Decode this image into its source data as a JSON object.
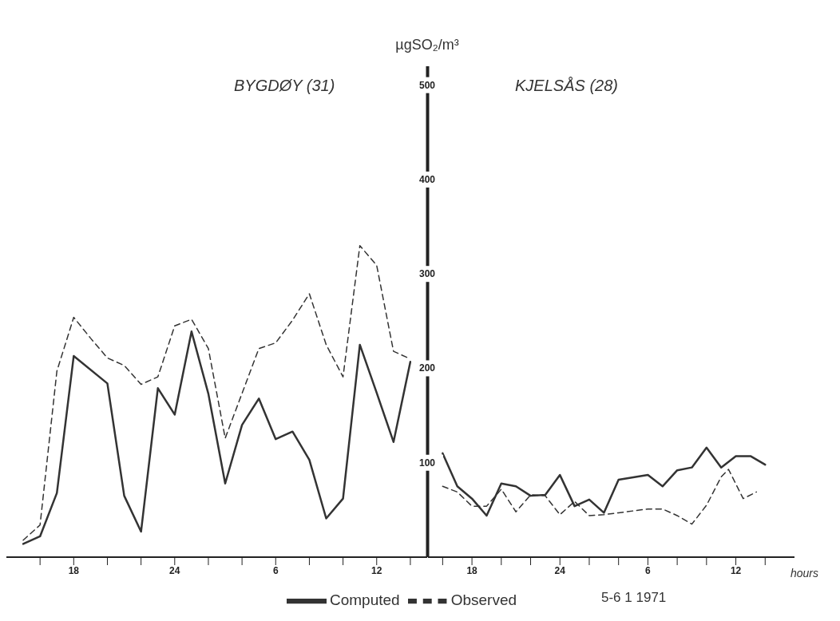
{
  "chart_data": [
    {
      "type": "line",
      "title": "BYGDØY (31)",
      "ylabel": "µgSO₂/m³",
      "xlim": [
        "1971-01-05T14:00",
        "1971-01-06T15:00"
      ],
      "ylim": [
        0,
        520
      ],
      "xticks": [
        {
          "value": "1971-01-05T16:00",
          "label": null
        },
        {
          "value": "1971-01-05T18:00",
          "label": "18"
        },
        {
          "value": "1971-01-05T20:00",
          "label": null
        },
        {
          "value": "1971-01-05T22:00",
          "label": null
        },
        {
          "value": "1971-01-06T00:00",
          "label": "24"
        },
        {
          "value": "1971-01-06T02:00",
          "label": null
        },
        {
          "value": "1971-01-06T04:00",
          "label": null
        },
        {
          "value": "1971-01-06T06:00",
          "label": "6"
        },
        {
          "value": "1971-01-06T08:00",
          "label": null
        },
        {
          "value": "1971-01-06T10:00",
          "label": null
        },
        {
          "value": "1971-01-06T12:00",
          "label": "12"
        },
        {
          "value": "1971-01-06T14:00",
          "label": null
        }
      ],
      "yticks": [
        100,
        200,
        300,
        400,
        500
      ],
      "legend": "bottom",
      "annotations": [
        "5-6 1 1971"
      ],
      "series": [
        {
          "name": "Computed",
          "color": "#333333",
          "line_style": "solid",
          "x": [
            "1971-01-05T15:00",
            "1971-01-05T16:00",
            "1971-01-05T17:00",
            "1971-01-05T18:00",
            "1971-01-05T20:00",
            "1971-01-05T21:00",
            "1971-01-05T22:00",
            "1971-01-05T23:00",
            "1971-01-06T00:00",
            "1971-01-06T01:00",
            "1971-01-06T02:00",
            "1971-01-06T03:00",
            "1971-01-06T04:00",
            "1971-01-06T05:00",
            "1971-01-06T06:00",
            "1971-01-06T07:00",
            "1971-01-06T08:00",
            "1971-01-06T09:00",
            "1971-01-06T10:00",
            "1971-01-06T11:00",
            "1971-01-06T12:00",
            "1971-01-06T13:00",
            "1971-01-06T14:00"
          ],
          "values": [
            14,
            22,
            68,
            213,
            184,
            65,
            27,
            179,
            151,
            239,
            173,
            78,
            140,
            168,
            125,
            133,
            103,
            41,
            62,
            225,
            174,
            122,
            207
          ]
        },
        {
          "name": "Observed",
          "color": "#333333",
          "line_style": "dashed",
          "x": [
            "1971-01-05T15:00",
            "1971-01-05T16:00",
            "1971-01-05T17:00",
            "1971-01-05T18:00",
            "1971-01-05T19:00",
            "1971-01-05T20:00",
            "1971-01-05T21:00",
            "1971-01-05T22:00",
            "1971-01-05T23:00",
            "1971-01-06T00:00",
            "1971-01-06T01:00",
            "1971-01-06T02:00",
            "1971-01-06T03:00",
            "1971-01-06T05:00",
            "1971-01-06T06:00",
            "1971-01-06T07:00",
            "1971-01-06T08:00",
            "1971-01-06T09:00",
            "1971-01-06T10:00",
            "1971-01-06T11:00",
            "1971-01-06T12:00",
            "1971-01-06T13:00",
            "1971-01-06T14:00"
          ],
          "values": [
            18,
            34,
            197,
            254,
            232,
            211,
            203,
            183,
            191,
            245,
            252,
            221,
            126,
            221,
            227,
            251,
            279,
            225,
            191,
            330,
            309,
            218,
            210
          ]
        }
      ]
    },
    {
      "type": "line",
      "title": "KJELSÅS (28)",
      "xlabel": "hours",
      "xlim": [
        "1971-01-05T15:00",
        "1971-01-06T16:00"
      ],
      "ylim": [
        0,
        520
      ],
      "tick_labels": "x",
      "xticks": [
        {
          "value": "1971-01-05T16:00",
          "label": null
        },
        {
          "value": "1971-01-05T18:00",
          "label": "18"
        },
        {
          "value": "1971-01-05T20:00",
          "label": null
        },
        {
          "value": "1971-01-05T22:00",
          "label": null
        },
        {
          "value": "1971-01-06T00:00",
          "label": "24"
        },
        {
          "value": "1971-01-06T02:00",
          "label": null
        },
        {
          "value": "1971-01-06T04:00",
          "label": null
        },
        {
          "value": "1971-01-06T06:00",
          "label": "6"
        },
        {
          "value": "1971-01-06T08:00",
          "label": null
        },
        {
          "value": "1971-01-06T10:00",
          "label": null
        },
        {
          "value": "1971-01-06T12:00",
          "label": "12"
        },
        {
          "value": "1971-01-06T14:00",
          "label": null
        }
      ],
      "yticks": [
        100,
        200,
        300,
        400,
        500
      ],
      "series": [
        {
          "color": "#333333",
          "line_style": "solid",
          "x": [
            "1971-01-05T16:00",
            "1971-01-05T17:00",
            "1971-01-05T18:00",
            "1971-01-05T19:00",
            "1971-01-05T20:00",
            "1971-01-05T21:00",
            "1971-01-05T22:00",
            "1971-01-05T23:00",
            "1971-01-06T00:00",
            "1971-01-06T01:00",
            "1971-01-06T02:00",
            "1971-01-06T03:00",
            "1971-01-06T04:00",
            "1971-01-06T06:00",
            "1971-01-06T07:00",
            "1971-01-06T08:00",
            "1971-01-06T09:00",
            "1971-01-06T10:00",
            "1971-01-06T11:00",
            "1971-01-06T12:00",
            "1971-01-06T13:00",
            "1971-01-06T14:00"
          ],
          "values": [
            110,
            75,
            62,
            44,
            78,
            75,
            65,
            66,
            87,
            54,
            61,
            47,
            82,
            87,
            75,
            92,
            95,
            116,
            95,
            107,
            107,
            98
          ]
        },
        {
          "color": "#333333",
          "line_style": "dashed",
          "x": [
            "1971-01-05T16:00",
            "1971-01-05T17:00",
            "1971-01-05T18:00",
            "1971-01-05T19:00",
            "1971-01-05T20:00",
            "1971-01-05T21:00",
            "1971-01-05T22:00",
            "1971-01-05T23:00",
            "1971-01-06T00:00",
            "1971-01-06T01:00",
            "1971-01-06T02:00",
            "1971-01-06T03:00",
            "1971-01-06T04:00",
            "1971-01-06T06:00",
            "1971-01-06T07:00",
            "1971-01-06T08:00",
            "1971-01-06T09:00",
            "1971-01-06T10:00",
            "1971-01-06T11:00",
            "1971-01-06T11:30",
            "1971-01-06T12:30",
            "1971-01-06T13:24"
          ],
          "values": [
            75,
            69,
            54,
            54,
            72,
            48,
            66,
            65,
            45,
            59,
            44,
            45,
            47,
            51,
            51,
            44,
            35,
            55,
            85,
            93,
            62,
            69
          ]
        }
      ]
    }
  ]
}
